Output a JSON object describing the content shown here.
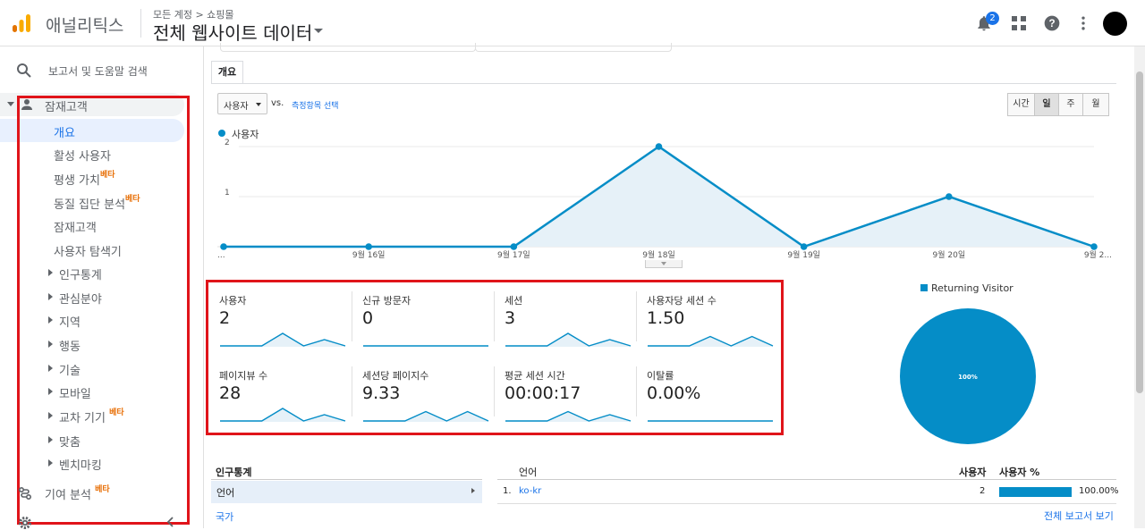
{
  "header": {
    "app_name": "애널리틱스",
    "breadcrumb": "모든 계정 > 쇼핑몰",
    "property_title": "전체 웹사이트 데이터",
    "notification_count": "2"
  },
  "sidebar": {
    "search_label": "보고서 및 도움말 검색",
    "section_label": "잠재고객",
    "items": [
      {
        "label": "개요",
        "active": true
      },
      {
        "label": "활성 사용자"
      },
      {
        "label": "평생 가치",
        "beta": "베타"
      },
      {
        "label": "동질 집단 분석",
        "beta": "베타"
      },
      {
        "label": "잠재고객"
      },
      {
        "label": "사용자 탐색기"
      }
    ],
    "sub_items": [
      {
        "label": "인구통계"
      },
      {
        "label": "관심분야"
      },
      {
        "label": "지역"
      },
      {
        "label": "행동"
      },
      {
        "label": "기술"
      },
      {
        "label": "모바일"
      },
      {
        "label": "교차 기기",
        "beta": "베타"
      },
      {
        "label": "맞춤"
      },
      {
        "label": "벤치마킹"
      }
    ],
    "attribution_label": "기여 분석",
    "attribution_beta": "베타"
  },
  "overview": {
    "tab_label": "개요",
    "metric_select": "사용자",
    "vs_label": "vs.",
    "pick_metric_link": "측정항목 선택",
    "granularity": [
      "시간",
      "일",
      "주",
      "월"
    ],
    "granularity_selected": "일",
    "series_legend": "사용자"
  },
  "chart_data": {
    "type": "area",
    "series": [
      {
        "name": "사용자",
        "values": [
          0,
          0,
          0,
          2,
          0,
          1,
          0
        ]
      }
    ],
    "x_tick_labels": [
      "...",
      "9월 16일",
      "9월 17일",
      "9월 18일",
      "9월 19일",
      "9월 20일",
      "9월 2..."
    ],
    "y_ticks": [
      "1",
      "2"
    ],
    "ylim": [
      0,
      2
    ],
    "color": "#058dc7"
  },
  "kpis": [
    {
      "name": "사용자",
      "value": "2",
      "trend": [
        0,
        0,
        0,
        2,
        0,
        1,
        0
      ]
    },
    {
      "name": "신규 방문자",
      "value": "0",
      "trend": [
        0,
        0,
        0,
        0,
        0,
        0,
        0
      ]
    },
    {
      "name": "세션",
      "value": "3",
      "trend": [
        0,
        0,
        0,
        2,
        0,
        1,
        0
      ]
    },
    {
      "name": "사용자당 세션 수",
      "value": "1.50",
      "trend": [
        0,
        0,
        0,
        1.5,
        0,
        1.5,
        0
      ]
    },
    {
      "name": "페이지뷰 수",
      "value": "28",
      "trend": [
        0,
        0,
        0,
        2,
        0,
        1,
        0
      ]
    },
    {
      "name": "세션당 페이지수",
      "value": "9.33",
      "trend": [
        0,
        0,
        0,
        1.5,
        0,
        1.5,
        0
      ]
    },
    {
      "name": "평균 세션 시간",
      "value": "00:00:17",
      "trend": [
        0,
        0,
        0,
        1.5,
        0,
        1,
        0
      ]
    },
    {
      "name": "이탈률",
      "value": "0.00%",
      "trend": [
        0,
        0,
        0,
        0,
        0,
        0,
        0
      ]
    }
  ],
  "pie": {
    "legend": "Returning Visitor",
    "label": "100%",
    "value_percent": 100,
    "color": "#058dc7"
  },
  "demographics": {
    "title": "인구통계",
    "selected": "언어",
    "other": "국가"
  },
  "language_table": {
    "col_language": "언어",
    "col_users": "사용자",
    "col_users_pct": "사용자 %",
    "rows": [
      {
        "num": "1.",
        "language": "ko-kr",
        "users": "2",
        "pct": "100.00%",
        "pct_value": 100
      }
    ],
    "full_report_link": "전체 보고서 보기"
  }
}
